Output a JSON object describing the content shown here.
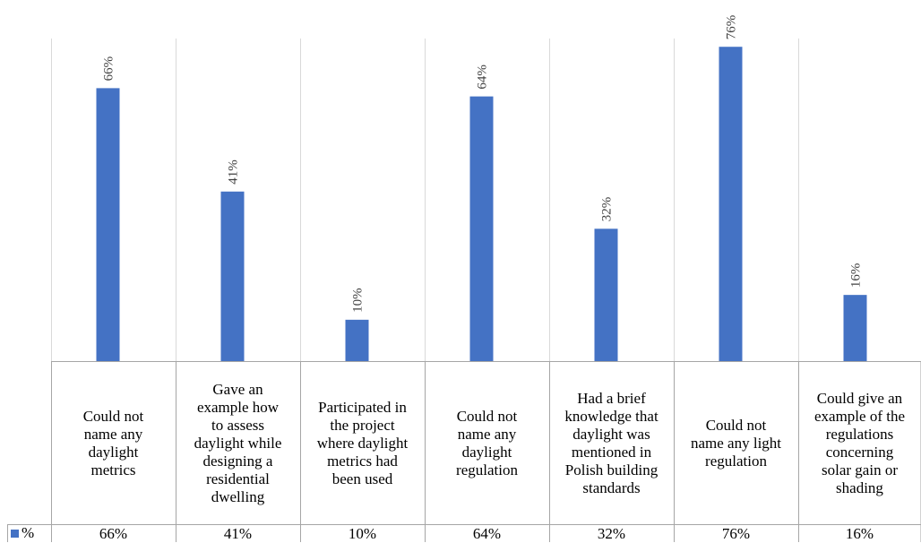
{
  "chart_data": {
    "type": "bar",
    "categories": [
      "Could not name any daylight metrics",
      "Gave an example how to assess daylight while designing a residential dwelling",
      "Participated in the project where daylight metrics had been used",
      "Could not name any daylight regulation",
      "Had a brief knowledge that daylight was mentioned in Polish building standards",
      "Could not name any light regulation",
      "Could give an example of the regulations concerning solar gain or shading"
    ],
    "category_lines": [
      [
        "Could not",
        "name any",
        "daylight",
        "metrics"
      ],
      [
        "Gave an",
        "example how",
        "to assess",
        "daylight while",
        "designing a",
        "residential",
        "dwelling"
      ],
      [
        "Participated in",
        "the project",
        "where daylight",
        "metrics had",
        "been used"
      ],
      [
        "Could not",
        "name any",
        "daylight",
        "regulation"
      ],
      [
        "Had a brief",
        "knowledge that",
        "daylight was",
        "mentioned in",
        "Polish building",
        "standards"
      ],
      [
        "Could not",
        "name any light",
        "regulation"
      ],
      [
        "Could give an",
        "example of the",
        "regulations",
        "concerning",
        "solar gain or",
        "shading"
      ]
    ],
    "series": [
      {
        "name": "%",
        "values": [
          66,
          41,
          10,
          64,
          32,
          76,
          16
        ],
        "labels": [
          "66%",
          "41%",
          "10%",
          "64%",
          "32%",
          "76%",
          "16%"
        ],
        "color": "#4472C4"
      }
    ],
    "ylim": [
      0,
      78
    ],
    "data_table": true,
    "legend_key_in_table": true,
    "gridlines": "vertical category separators"
  }
}
